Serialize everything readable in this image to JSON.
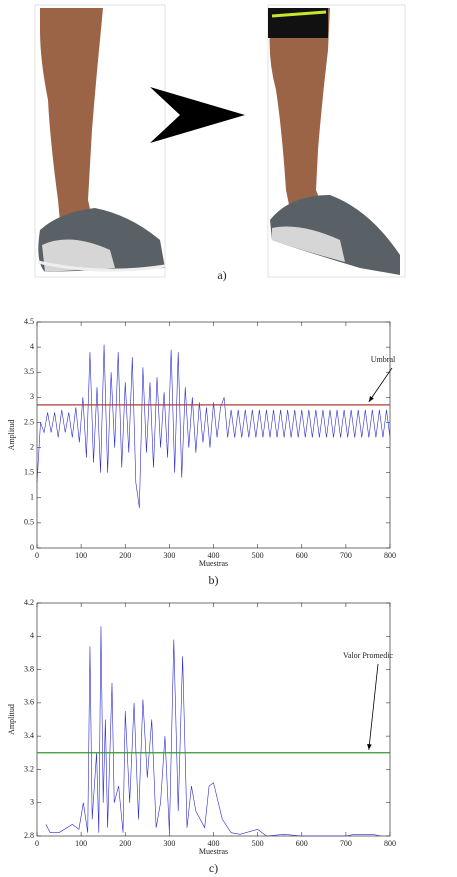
{
  "photo_caption": "a)",
  "chart_data": [
    {
      "type": "line",
      "caption": "b)",
      "xlabel": "Muestras",
      "ylabel": "Amplitud",
      "xlim": [
        0,
        800
      ],
      "ylim": [
        0,
        4.5
      ],
      "xticks": [
        0,
        100,
        200,
        300,
        400,
        500,
        600,
        700,
        800
      ],
      "yticks": [
        0,
        0.5,
        1,
        1.5,
        2,
        2.5,
        3,
        3.5,
        4,
        4.5
      ],
      "color": "#2b2bd0",
      "x": [
        0,
        8,
        16,
        24,
        32,
        40,
        48,
        56,
        64,
        72,
        80,
        88,
        96,
        104,
        112,
        120,
        128,
        136,
        144,
        152,
        160,
        168,
        176,
        184,
        192,
        200,
        208,
        216,
        224,
        232,
        240,
        248,
        256,
        264,
        272,
        280,
        288,
        296,
        304,
        312,
        320,
        328,
        336,
        344,
        352,
        360,
        368,
        376,
        384,
        392,
        400,
        408,
        416,
        424,
        432,
        440,
        448,
        456,
        464,
        472,
        480,
        488,
        496,
        504,
        512,
        520,
        528,
        536,
        544,
        552,
        560,
        568,
        576,
        584,
        592,
        600,
        608,
        616,
        624,
        632,
        640,
        648,
        656,
        664,
        672,
        680,
        688,
        696,
        704,
        712,
        720,
        728,
        736,
        744,
        752,
        760,
        768,
        776,
        784,
        792,
        800
      ],
      "values": [
        1.3,
        2.5,
        2.3,
        2.7,
        2.3,
        2.7,
        2.2,
        2.75,
        2.3,
        2.7,
        2.2,
        2.8,
        2.1,
        3.0,
        1.8,
        3.9,
        1.7,
        3.2,
        1.5,
        4.05,
        1.5,
        3.5,
        2.0,
        3.9,
        1.6,
        3.3,
        1.9,
        3.8,
        1.3,
        0.8,
        3.6,
        1.9,
        3.3,
        1.6,
        3.4,
        2.0,
        3.1,
        1.8,
        3.95,
        1.5,
        3.9,
        1.4,
        3.2,
        2.0,
        3.0,
        1.9,
        2.9,
        2.1,
        2.8,
        2.0,
        2.9,
        2.2,
        2.8,
        3.0,
        2.2,
        2.75,
        2.2,
        2.75,
        2.2,
        2.75,
        2.2,
        2.75,
        2.2,
        2.75,
        2.2,
        2.75,
        2.2,
        2.75,
        2.2,
        2.75,
        2.2,
        2.75,
        2.2,
        2.75,
        2.2,
        2.75,
        2.2,
        2.75,
        2.2,
        2.75,
        2.2,
        2.75,
        2.2,
        2.75,
        2.2,
        2.75,
        2.2,
        2.75,
        2.2,
        2.75,
        2.2,
        2.75,
        2.2,
        2.75,
        2.2,
        2.75,
        2.2,
        2.75,
        2.2,
        2.75,
        2.2
      ],
      "reference_line": {
        "value": 2.85,
        "label": "Umbral",
        "color": "#b03a3a"
      }
    },
    {
      "type": "line",
      "caption": "c)",
      "xlabel": "Muestras",
      "ylabel": "Amplitud",
      "xlim": [
        0,
        800
      ],
      "ylim": [
        2.8,
        4.2
      ],
      "xticks": [
        0,
        100,
        200,
        300,
        400,
        500,
        600,
        700,
        800
      ],
      "yticks": [
        2.8,
        3,
        3.2,
        3.4,
        3.6,
        3.8,
        4,
        4.2
      ],
      "color": "#2b2bd0",
      "x": [
        20,
        30,
        50,
        80,
        95,
        105,
        115,
        120,
        125,
        135,
        140,
        145,
        150,
        155,
        160,
        170,
        175,
        185,
        195,
        200,
        210,
        220,
        230,
        240,
        250,
        260,
        270,
        280,
        290,
        300,
        310,
        320,
        330,
        340,
        350,
        360,
        370,
        380,
        390,
        400,
        420,
        440,
        460,
        500,
        520,
        560,
        600,
        650,
        700,
        720,
        760,
        780
      ],
      "values": [
        2.87,
        2.82,
        2.82,
        2.87,
        2.84,
        3.0,
        2.82,
        3.94,
        2.9,
        3.3,
        2.82,
        4.06,
        3.0,
        3.5,
        2.85,
        3.72,
        3.0,
        3.1,
        2.82,
        3.55,
        3.0,
        3.6,
        2.9,
        3.62,
        3.15,
        3.5,
        2.85,
        3.0,
        3.4,
        2.82,
        3.98,
        2.95,
        3.88,
        2.85,
        3.1,
        2.95,
        2.9,
        2.85,
        3.1,
        3.12,
        2.9,
        2.82,
        2.81,
        2.84,
        2.8,
        2.81,
        2.8,
        2.8,
        2.8,
        2.81,
        2.81,
        2.8
      ],
      "reference_line": {
        "value": 3.3,
        "label": "Valor Promedic",
        "color": "#2e9a2e"
      }
    }
  ]
}
